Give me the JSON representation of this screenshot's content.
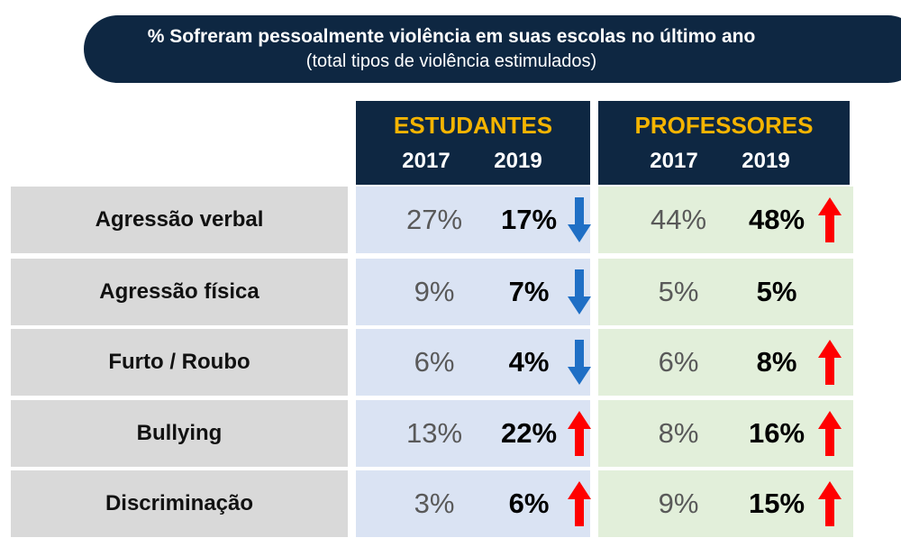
{
  "title": {
    "main": "% Sofreram pessoalmente violência em suas escolas no último ano",
    "sub": "(total tipos de violência estimulados)"
  },
  "groups": [
    {
      "name": "ESTUDANTES",
      "years": [
        "2017",
        "2019"
      ],
      "bg": "#dae3f3"
    },
    {
      "name": "PROFESSORES",
      "years": [
        "2017",
        "2019"
      ],
      "bg": "#e2efda"
    }
  ],
  "colors": {
    "header_bg": "#0e2742",
    "group_title": "#f5b400",
    "label_bg": "#d9d9d9",
    "down_arrow": "#1f6fc5",
    "up_arrow": "#ff0000"
  },
  "rows": [
    {
      "label": "Agressão verbal",
      "estudantes": {
        "v2017": "27%",
        "v2019": "17%",
        "trend": "down"
      },
      "professores": {
        "v2017": "44%",
        "v2019": "48%",
        "trend": "up"
      }
    },
    {
      "label": "Agressão física",
      "estudantes": {
        "v2017": "9%",
        "v2019": "7%",
        "trend": "down"
      },
      "professores": {
        "v2017": "5%",
        "v2019": "5%",
        "trend": "none"
      }
    },
    {
      "label": "Furto / Roubo",
      "estudantes": {
        "v2017": "6%",
        "v2019": "4%",
        "trend": "down"
      },
      "professores": {
        "v2017": "6%",
        "v2019": "8%",
        "trend": "up"
      }
    },
    {
      "label": "Bullying",
      "estudantes": {
        "v2017": "13%",
        "v2019": "22%",
        "trend": "up"
      },
      "professores": {
        "v2017": "8%",
        "v2019": "16%",
        "trend": "up"
      }
    },
    {
      "label": "Discriminação",
      "estudantes": {
        "v2017": "3%",
        "v2019": "6%",
        "trend": "up"
      },
      "professores": {
        "v2017": "9%",
        "v2019": "15%",
        "trend": "up"
      }
    }
  ],
  "chart_data": {
    "type": "table",
    "title": "% Sofreram pessoalmente violência em suas escolas no último ano",
    "subtitle": "(total tipos de violência estimulados)",
    "categories": [
      "Agressão verbal",
      "Agressão física",
      "Furto / Roubo",
      "Bullying",
      "Discriminação"
    ],
    "series": [
      {
        "name": "ESTUDANTES 2017",
        "values": [
          27,
          9,
          6,
          13,
          3
        ]
      },
      {
        "name": "ESTUDANTES 2019",
        "values": [
          17,
          7,
          4,
          22,
          6
        ]
      },
      {
        "name": "PROFESSORES 2017",
        "values": [
          44,
          5,
          6,
          8,
          9
        ]
      },
      {
        "name": "PROFESSORES 2019",
        "values": [
          48,
          5,
          8,
          16,
          15
        ]
      }
    ]
  }
}
